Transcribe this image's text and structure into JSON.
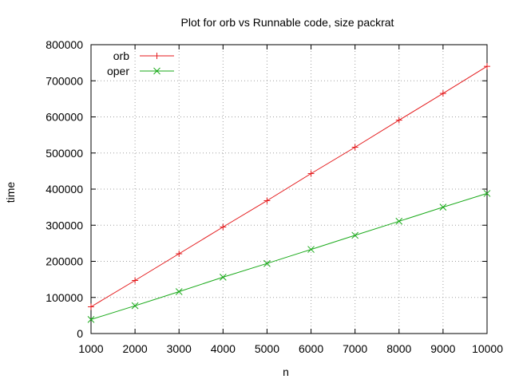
{
  "chart_data": {
    "type": "line",
    "title": "Plot for orb vs Runnable code, size packrat",
    "xlabel": "n",
    "ylabel": "time",
    "x": [
      1000,
      2000,
      3000,
      4000,
      5000,
      6000,
      7000,
      8000,
      9000,
      10000
    ],
    "xlim": [
      1000,
      10000
    ],
    "ylim": [
      0,
      800000
    ],
    "x_ticks": [
      "1000",
      "2000",
      "3000",
      "4000",
      "5000",
      "6000",
      "7000",
      "8000",
      "9000",
      "10000"
    ],
    "y_ticks": [
      "0",
      "100000",
      "200000",
      "300000",
      "400000",
      "500000",
      "600000",
      "700000",
      "800000"
    ],
    "grid": true,
    "legend_position": "top-left",
    "series": [
      {
        "name": "orb",
        "color": "#e41a1c",
        "marker": "plus",
        "values": [
          74000,
          147000,
          221000,
          295000,
          368000,
          443000,
          516000,
          591000,
          665000,
          740000
        ]
      },
      {
        "name": "oper",
        "color": "#1aaa1a",
        "marker": "cross",
        "values": [
          39000,
          77000,
          116000,
          156000,
          194000,
          233000,
          272000,
          311000,
          350000,
          388000
        ]
      }
    ]
  }
}
